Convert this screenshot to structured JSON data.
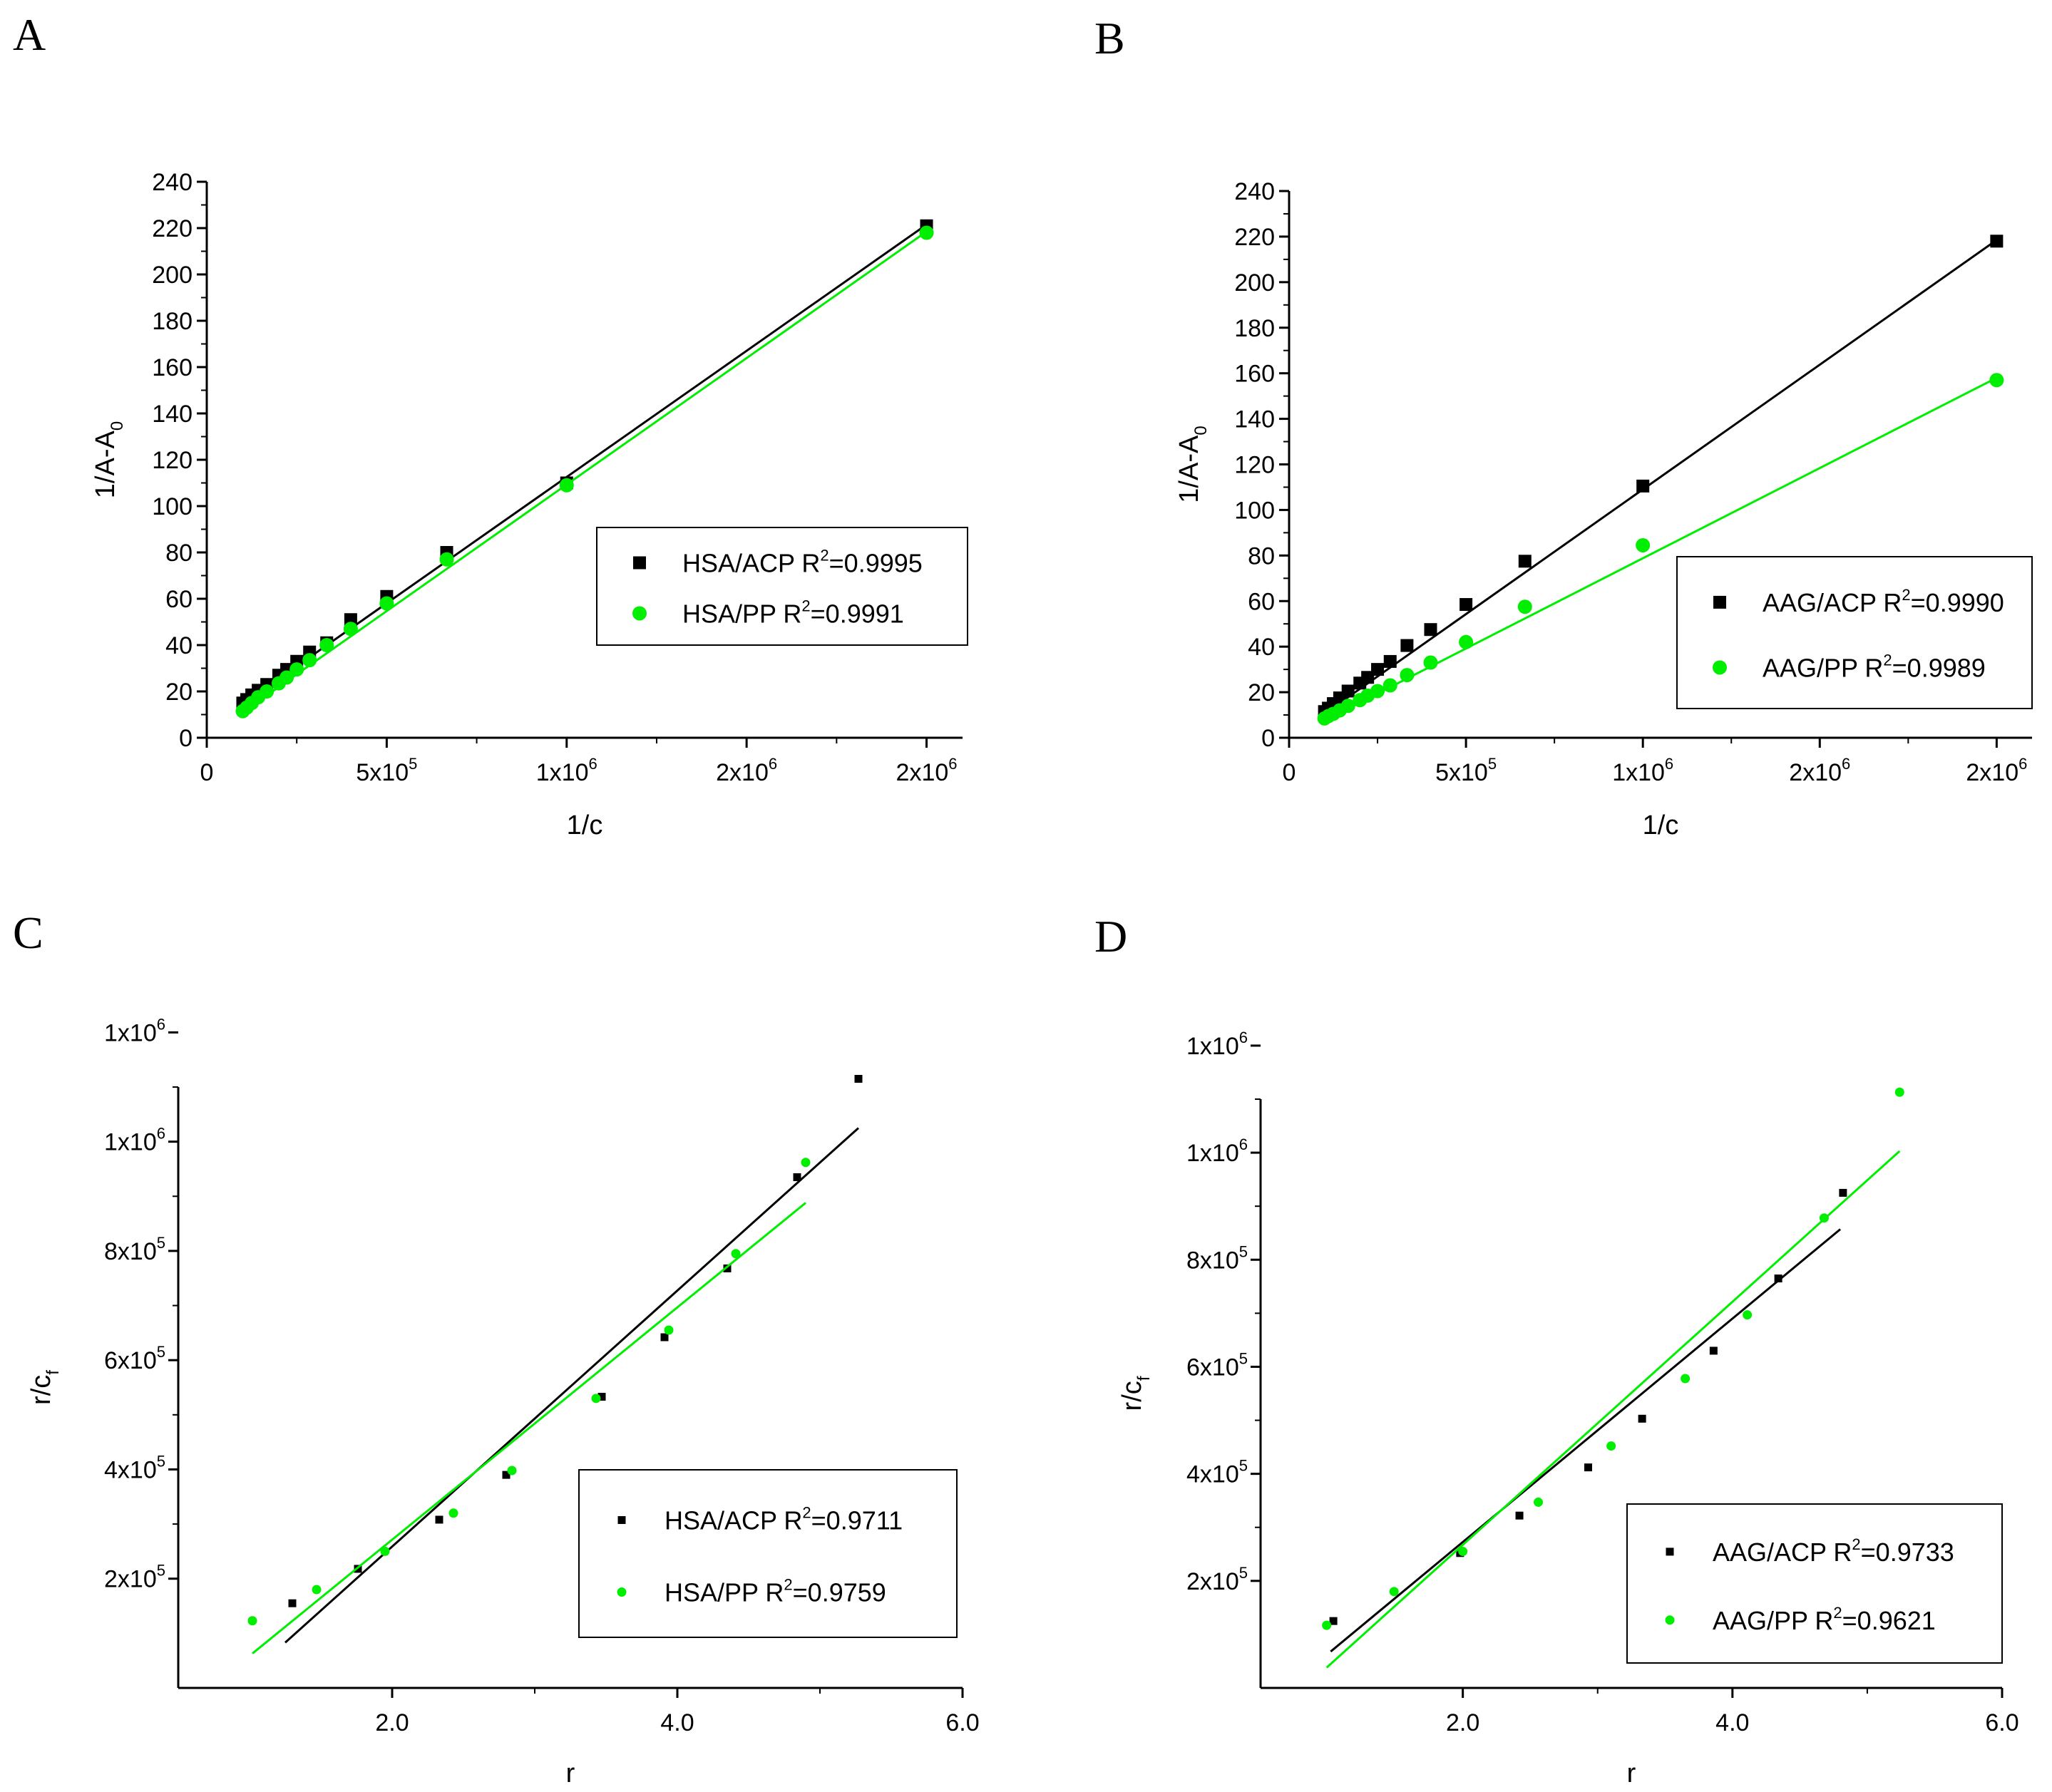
{
  "chart_data": [
    {
      "panel": "A",
      "type": "scatter",
      "xlabel": "1/c",
      "ylabel": {
        "main": "1/A-A",
        "sub": "0"
      },
      "xlim": [
        0,
        2100000
      ],
      "ylim": [
        0,
        240
      ],
      "xticks": [
        {
          "value": 0,
          "base": "0",
          "exp": ""
        },
        {
          "value": 500000,
          "base": "5x10",
          "exp": "5"
        },
        {
          "value": 1000000,
          "base": "1x10",
          "exp": "6"
        },
        {
          "value": 1500000,
          "base": "2x10",
          "exp": "6"
        },
        {
          "value": 2000000,
          "base": "2x10",
          "exp": "6"
        }
      ],
      "yticks": [
        {
          "value": 0,
          "label": "0"
        },
        {
          "value": 20,
          "label": "20"
        },
        {
          "value": 40,
          "label": "40"
        },
        {
          "value": 60,
          "label": "60"
        },
        {
          "value": 80,
          "label": "80"
        },
        {
          "value": 100,
          "label": "100"
        },
        {
          "value": 120,
          "label": "120"
        },
        {
          "value": 140,
          "label": "140"
        },
        {
          "value": 160,
          "label": "160"
        },
        {
          "value": 180,
          "label": "180"
        },
        {
          "value": 200,
          "label": "200"
        },
        {
          "value": 220,
          "label": "220"
        },
        {
          "value": 240,
          "label": "240"
        }
      ],
      "legend": {
        "position": "center-right"
      },
      "series": [
        {
          "name": "HSA/ACP",
          "r2_label": "R",
          "r2_exp": "2",
          "r2_value": "=0.9995",
          "color": "#000000",
          "marker": "square",
          "x": [
            100000,
            111000,
            125000,
            142900,
            166700,
            200000,
            222000,
            250000,
            285700,
            333300,
            400000,
            500000,
            666700,
            1000000,
            2000000
          ],
          "y": [
            15,
            16.5,
            18.5,
            20.5,
            23,
            27,
            29.5,
            33,
            37,
            41,
            51,
            61,
            80,
            110,
            221
          ],
          "fit": {
            "x": [
              100000,
              2000000
            ],
            "y": [
              14.5,
              221.5
            ]
          }
        },
        {
          "name": "HSA/PP",
          "r2_label": "R",
          "r2_exp": "2",
          "r2_value": "=0.9991",
          "color": "#00ee00",
          "marker": "circle",
          "x": [
            100000,
            111000,
            125000,
            142900,
            166700,
            200000,
            222000,
            250000,
            285700,
            333300,
            400000,
            500000,
            666700,
            1000000,
            2000000
          ],
          "y": [
            11.5,
            13,
            15,
            17.5,
            20,
            23.5,
            26,
            29.5,
            33.5,
            40,
            47,
            58,
            77,
            109,
            218
          ],
          "fit": {
            "x": [
              100000,
              2000000
            ],
            "y": [
              11,
              218.5
            ]
          }
        }
      ]
    },
    {
      "panel": "B",
      "type": "scatter",
      "xlabel": "1/c",
      "ylabel": {
        "main": "1/A-A",
        "sub": "0"
      },
      "xlim": [
        0,
        2100000
      ],
      "ylim": [
        0,
        240
      ],
      "xticks": [
        {
          "value": 0,
          "base": "0",
          "exp": ""
        },
        {
          "value": 500000,
          "base": "5x10",
          "exp": "5"
        },
        {
          "value": 1000000,
          "base": "1x10",
          "exp": "6"
        },
        {
          "value": 1500000,
          "base": "2x10",
          "exp": "6"
        },
        {
          "value": 2000000,
          "base": "2x10",
          "exp": "6"
        }
      ],
      "yticks": [
        {
          "value": 0,
          "label": "0"
        },
        {
          "value": 20,
          "label": "20"
        },
        {
          "value": 40,
          "label": "40"
        },
        {
          "value": 60,
          "label": "60"
        },
        {
          "value": 80,
          "label": "80"
        },
        {
          "value": 100,
          "label": "100"
        },
        {
          "value": 120,
          "label": "120"
        },
        {
          "value": 140,
          "label": "140"
        },
        {
          "value": 160,
          "label": "160"
        },
        {
          "value": 180,
          "label": "180"
        },
        {
          "value": 200,
          "label": "200"
        },
        {
          "value": 220,
          "label": "220"
        },
        {
          "value": 240,
          "label": "240"
        }
      ],
      "legend": {
        "position": "center-right"
      },
      "series": [
        {
          "name": "AAG/ACP",
          "r2_label": "R",
          "r2_exp": "2",
          "r2_value": "=0.9990",
          "color": "#000000",
          "marker": "square",
          "x": [
            100000,
            111000,
            125000,
            142900,
            166700,
            200000,
            222000,
            250000,
            285700,
            333300,
            400000,
            500000,
            666700,
            1000000,
            2000000
          ],
          "y": [
            11.5,
            13,
            15,
            17.5,
            20.5,
            24,
            26.5,
            30,
            33.5,
            40.5,
            47.5,
            58.5,
            77.5,
            110.5,
            218
          ],
          "fit": {
            "x": [
              100000,
              2000000
            ],
            "y": [
              10.5,
              218.5
            ]
          }
        },
        {
          "name": "AAG/PP",
          "r2_label": "R",
          "r2_exp": "2",
          "r2_value": "=0.9989",
          "color": "#00ee00",
          "marker": "circle",
          "x": [
            100000,
            111000,
            125000,
            142900,
            166700,
            200000,
            222000,
            250000,
            285700,
            333300,
            400000,
            500000,
            666700,
            1000000,
            2000000
          ],
          "y": [
            8.5,
            9.5,
            10.5,
            12,
            14,
            16.5,
            18.5,
            20.5,
            23,
            27.5,
            33,
            42,
            57.5,
            84.5,
            157
          ],
          "fit": {
            "x": [
              100000,
              2000000
            ],
            "y": [
              7.5,
              158
            ]
          }
        }
      ]
    },
    {
      "panel": "C",
      "type": "scatter",
      "xlabel": "r",
      "ylabel": {
        "main": "r/c",
        "sub": "f"
      },
      "xlim": [
        0.5,
        6.0
      ],
      "ylim": [
        0,
        1100000
      ],
      "xticks": [
        {
          "value": 2.0,
          "base": "2.0",
          "exp": ""
        },
        {
          "value": 4.0,
          "base": "4.0",
          "exp": ""
        },
        {
          "value": 6.0,
          "base": "6.0",
          "exp": ""
        }
      ],
      "yticks": [
        {
          "value": 200000,
          "base": "2x10",
          "exp": "5"
        },
        {
          "value": 400000,
          "base": "4x10",
          "exp": "5"
        },
        {
          "value": 600000,
          "base": "6x10",
          "exp": "5"
        },
        {
          "value": 800000,
          "base": "8x10",
          "exp": "5"
        },
        {
          "value": 1000000,
          "base": "1x10",
          "exp": "6"
        },
        {
          "value": 1200000,
          "base": "1x10",
          "exp": "6"
        }
      ],
      "legend": {
        "position": "bottom-right"
      },
      "series": [
        {
          "name": "HSA/ACP",
          "r2_label": "R",
          "r2_exp": "2",
          "r2_value": "=0.9711",
          "color": "#000000",
          "marker": "square",
          "x": [
            1.3,
            1.76,
            2.33,
            2.8,
            3.47,
            3.91,
            4.35,
            4.84,
            5.27
          ],
          "y": [
            155000,
            218000,
            308000,
            390000,
            533000,
            642000,
            768000,
            935000,
            1115000
          ],
          "fit": {
            "x": [
              1.25,
              5.27
            ],
            "y": [
              83000,
              1025000
            ]
          }
        },
        {
          "name": "HSA/PP",
          "r2_label": "R",
          "r2_exp": "2",
          "r2_value": "=0.9759",
          "color": "#00ee00",
          "marker": "circle",
          "x": [
            1.02,
            1.47,
            1.95,
            2.43,
            2.84,
            3.43,
            3.94,
            4.41,
            4.9
          ],
          "y": [
            123000,
            180000,
            250000,
            320000,
            398000,
            530000,
            655000,
            795000,
            962000
          ],
          "fit": {
            "x": [
              1.02,
              4.9
            ],
            "y": [
              63000,
              888000
            ]
          }
        }
      ]
    },
    {
      "panel": "D",
      "type": "scatter",
      "xlabel": "r",
      "ylabel": {
        "main": "r/c",
        "sub": "f"
      },
      "xlim": [
        0.5,
        6.0
      ],
      "ylim": [
        0,
        1100000
      ],
      "xticks": [
        {
          "value": 2.0,
          "base": "2.0",
          "exp": ""
        },
        {
          "value": 4.0,
          "base": "4.0",
          "exp": ""
        },
        {
          "value": 6.0,
          "base": "6.0",
          "exp": ""
        }
      ],
      "yticks": [
        {
          "value": 200000,
          "base": "2x10",
          "exp": "5"
        },
        {
          "value": 400000,
          "base": "4x10",
          "exp": "5"
        },
        {
          "value": 600000,
          "base": "6x10",
          "exp": "5"
        },
        {
          "value": 800000,
          "base": "8x10",
          "exp": "5"
        },
        {
          "value": 1000000,
          "base": "1x10",
          "exp": "6"
        },
        {
          "value": 1200000,
          "base": "1x10",
          "exp": "6"
        }
      ],
      "legend": {
        "position": "bottom-right"
      },
      "series": [
        {
          "name": "AAG/ACP",
          "r2_label": "R",
          "r2_exp": "2",
          "r2_value": "=0.9733",
          "color": "#000000",
          "marker": "square",
          "x": [
            1.04,
            1.98,
            2.42,
            2.93,
            3.33,
            3.86,
            4.34,
            4.82
          ],
          "y": [
            125000,
            252000,
            322000,
            412000,
            503000,
            630000,
            765000,
            925000
          ],
          "fit": {
            "x": [
              1.02,
              4.8
            ],
            "y": [
              68000,
              857000
            ]
          }
        },
        {
          "name": "AAG/PP",
          "r2_label": "R",
          "r2_exp": "2",
          "r2_value": "=0.9621",
          "color": "#00ee00",
          "marker": "circle",
          "x": [
            0.99,
            1.49,
            2.0,
            2.56,
            3.1,
            3.65,
            4.11,
            4.68,
            5.24
          ],
          "y": [
            117000,
            180000,
            255000,
            347000,
            452000,
            578000,
            697000,
            878000,
            1113000
          ],
          "fit": {
            "x": [
              0.99,
              5.24
            ],
            "y": [
              38000,
              1003000
            ]
          }
        }
      ]
    }
  ]
}
